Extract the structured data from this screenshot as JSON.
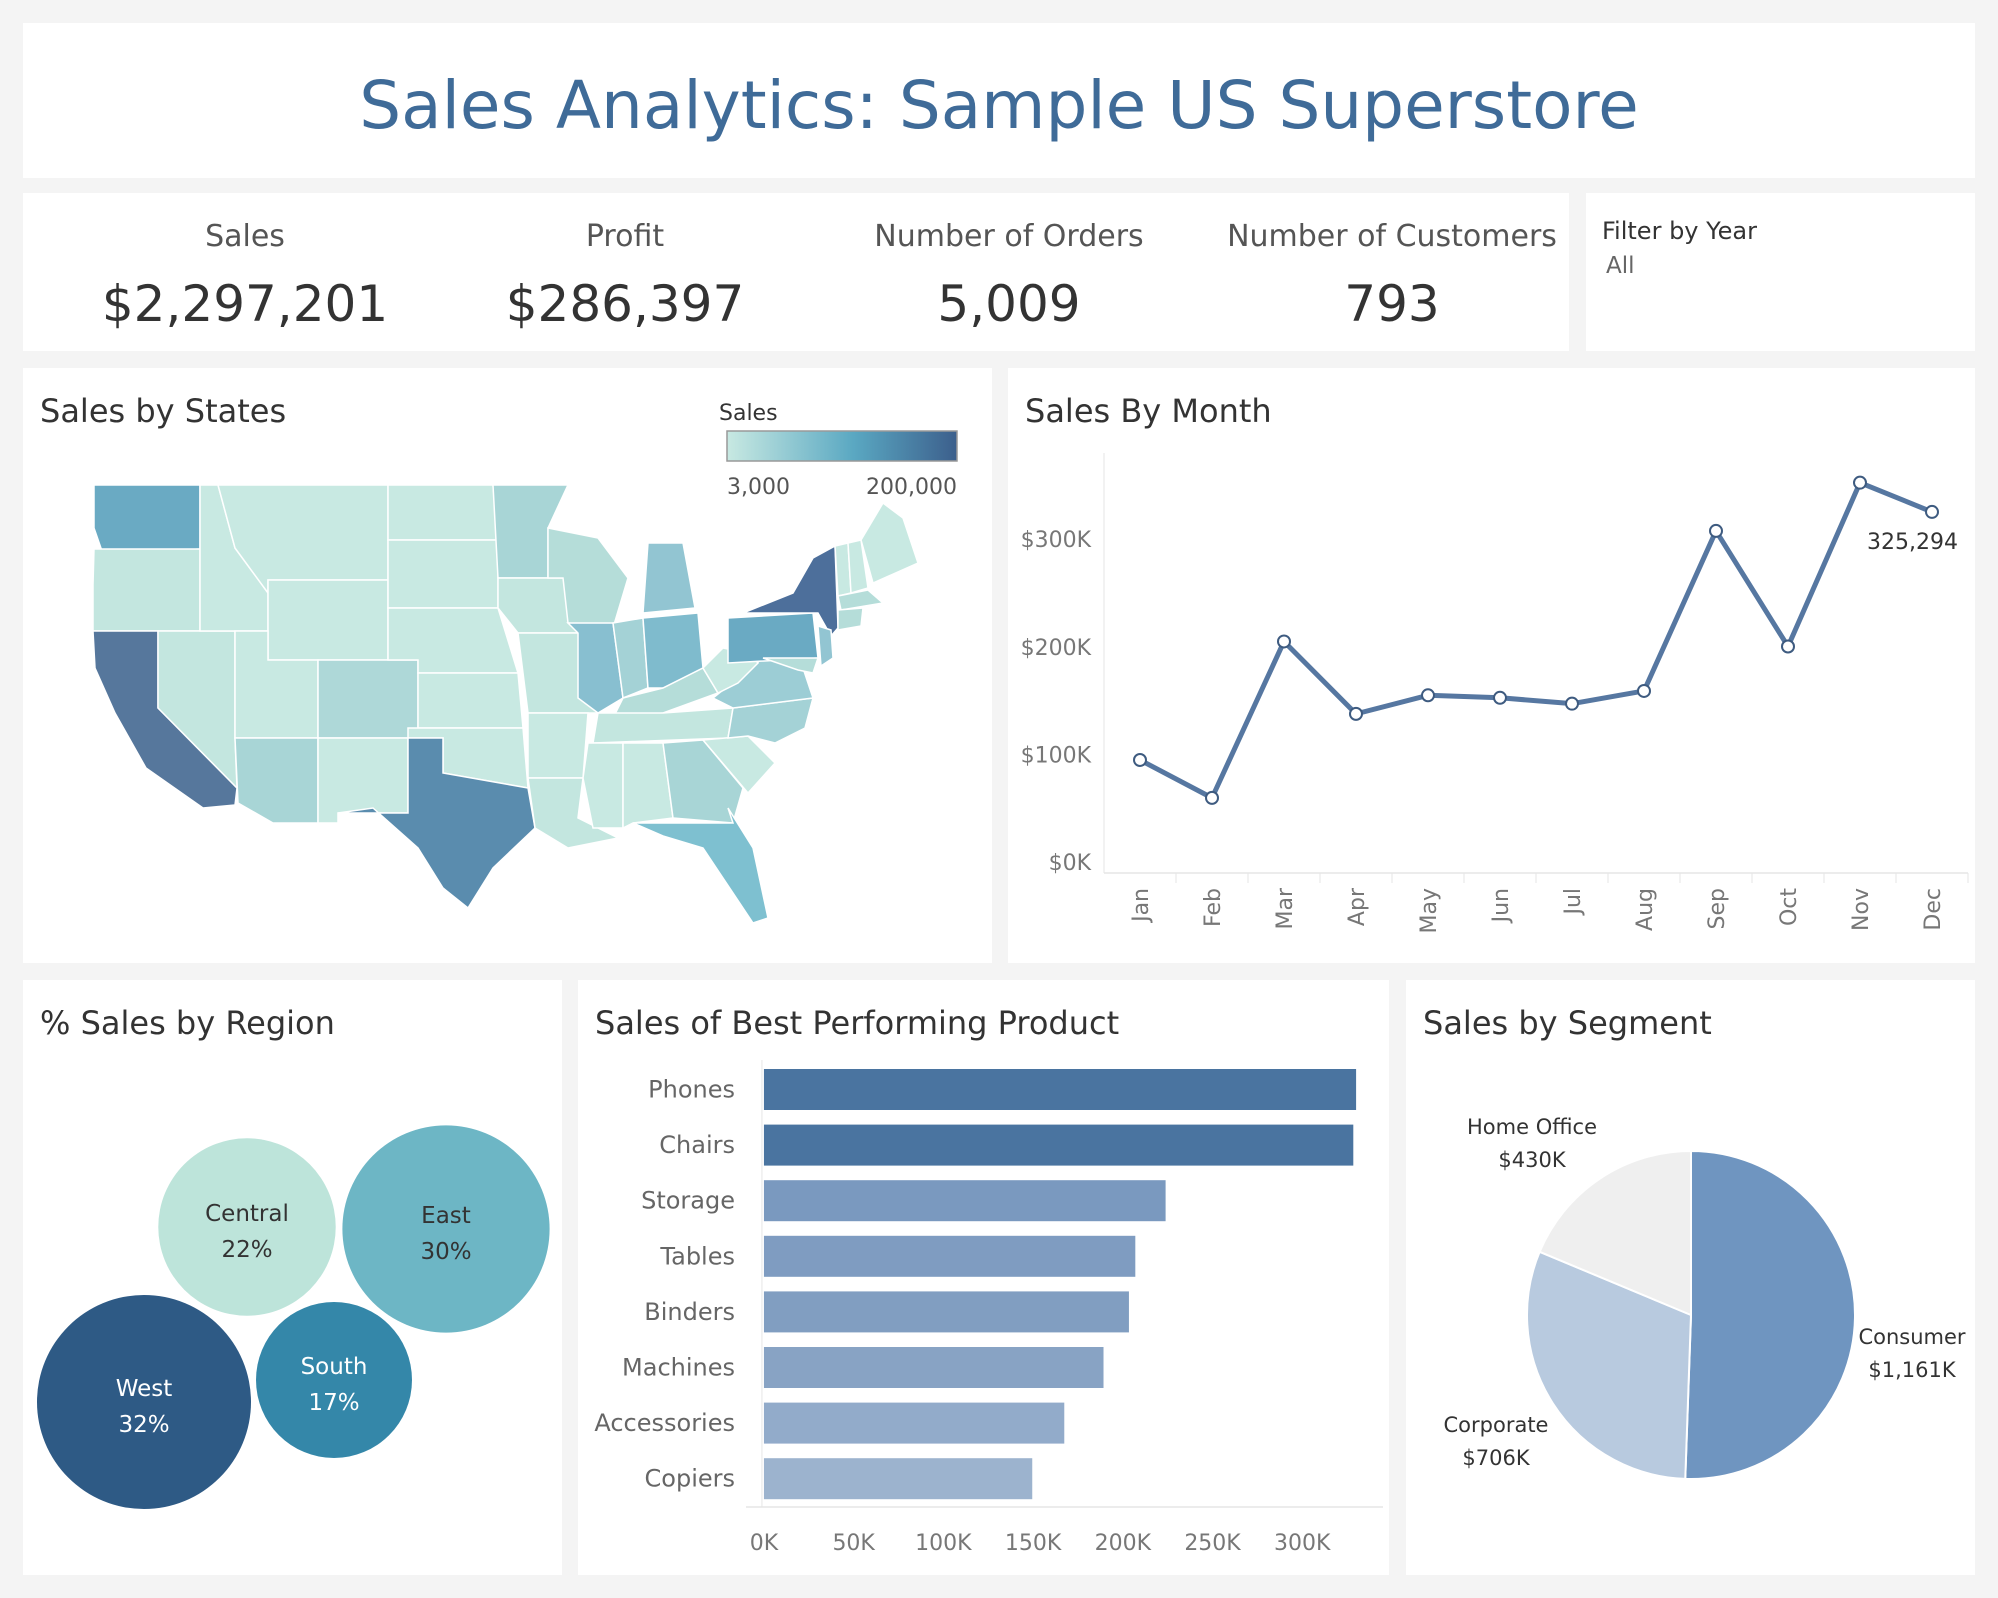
{
  "title": "Sales Analytics: Sample US Superstore",
  "kpis": [
    {
      "label": "Sales",
      "value": "$2,297,201"
    },
    {
      "label": "Profit",
      "value": "$286,397"
    },
    {
      "label": "Number of Orders",
      "value": "5,009"
    },
    {
      "label": "Number of Customers",
      "value": "793"
    }
  ],
  "filter": {
    "title": "Filter by Year",
    "value": "All"
  },
  "colors": {
    "line": "#5677a1",
    "bar_dark": "#4a74a0",
    "title": "#3f6b98"
  },
  "chart_data": [
    {
      "type": "map",
      "title": "Sales by States",
      "legend": {
        "title": "Sales",
        "min_label": "3,000",
        "max_label": "200,000",
        "colors": [
          "#c8e9e2",
          "#5aa8c2",
          "#3c5f8c"
        ]
      },
      "states": [
        {
          "name": "California",
          "level": 0.95
        },
        {
          "name": "Texas",
          "level": 0.8
        },
        {
          "name": "New York",
          "level": 1.0
        },
        {
          "name": "Washington",
          "level": 0.6
        },
        {
          "name": "Pennsylvania",
          "level": 0.6
        },
        {
          "name": "Florida",
          "level": 0.5
        },
        {
          "name": "Illinois",
          "level": 0.45
        },
        {
          "name": "Ohio",
          "level": 0.45
        },
        {
          "name": "Michigan",
          "level": 0.4
        },
        {
          "name": "Virginia",
          "level": 0.3
        },
        {
          "name": "Arizona",
          "level": 0.25
        },
        {
          "name": "Georgia",
          "level": 0.25
        },
        {
          "name": "North Carolina",
          "level": 0.25
        },
        {
          "name": "Colorado",
          "level": 0.2
        },
        {
          "name": "Indiana",
          "level": 0.25
        },
        {
          "name": "Kentucky",
          "level": 0.2
        },
        {
          "name": "Wisconsin",
          "level": 0.15
        },
        {
          "name": "Minnesota",
          "level": 0.15
        },
        {
          "name": "Tennessee",
          "level": 0.15
        },
        {
          "name": "New Jersey",
          "level": 0.3
        },
        {
          "name": "Massachusetts",
          "level": 0.2
        }
      ]
    },
    {
      "type": "line",
      "title": "Sales By Month",
      "x": [
        "Jan",
        "Feb",
        "Mar",
        "Apr",
        "May",
        "Jun",
        "Jul",
        "Aug",
        "Sep",
        "Oct",
        "Nov",
        "Dec"
      ],
      "values": [
        94925,
        59751,
        205005,
        137762,
        155029,
        152719,
        147238,
        159044,
        307650,
        200323,
        352461,
        325294
      ],
      "yticks": [
        0,
        100000,
        200000,
        300000
      ],
      "ytick_labels": [
        "$0K",
        "$100K",
        "$200K",
        "$300K"
      ],
      "ylim": [
        -10000,
        380000
      ],
      "annotation": {
        "index": 11,
        "label": "325,294"
      }
    },
    {
      "type": "bubble",
      "title": "% Sales by Region",
      "series": [
        {
          "name": "Central",
          "value": 22,
          "label": "22%",
          "color": "#bde4da",
          "text_color": "#333333"
        },
        {
          "name": "East",
          "value": 30,
          "label": "30%",
          "color": "#6db6c5",
          "text_color": "#333333"
        },
        {
          "name": "West",
          "value": 32,
          "label": "32%",
          "color": "#2e5a85",
          "text_color": "#ffffff"
        },
        {
          "name": "South",
          "value": 17,
          "label": "17%",
          "color": "#3487a9",
          "text_color": "#ffffff"
        }
      ]
    },
    {
      "type": "bar",
      "title": "Sales of Best Performing Product",
      "categories": [
        "Phones",
        "Chairs",
        "Storage",
        "Tables",
        "Binders",
        "Machines",
        "Accessories",
        "Copiers"
      ],
      "values": [
        330007,
        328449,
        223844,
        206966,
        203413,
        189239,
        167380,
        149528
      ],
      "colors": [
        "#4a74a0",
        "#4a74a0",
        "#7a99bf",
        "#7f9cc1",
        "#819ec1",
        "#88a3c4",
        "#92abca",
        "#9cb3ce"
      ],
      "xticks": [
        0,
        50000,
        100000,
        150000,
        200000,
        250000,
        300000
      ],
      "xtick_labels": [
        "0K",
        "50K",
        "100K",
        "150K",
        "200K",
        "250K",
        "300K"
      ],
      "xlim": [
        -10000,
        345000
      ]
    },
    {
      "type": "pie",
      "title": "Sales by Segment",
      "series": [
        {
          "name": "Consumer",
          "value": 1161401,
          "label": "$1,161K",
          "color": "#6f95c0"
        },
        {
          "name": "Corporate",
          "value": 706146,
          "label": "$706K",
          "color": "#b8cadf"
        },
        {
          "name": "Home Office",
          "value": 429653,
          "label": "$430K",
          "color": "#efefef"
        }
      ]
    }
  ]
}
